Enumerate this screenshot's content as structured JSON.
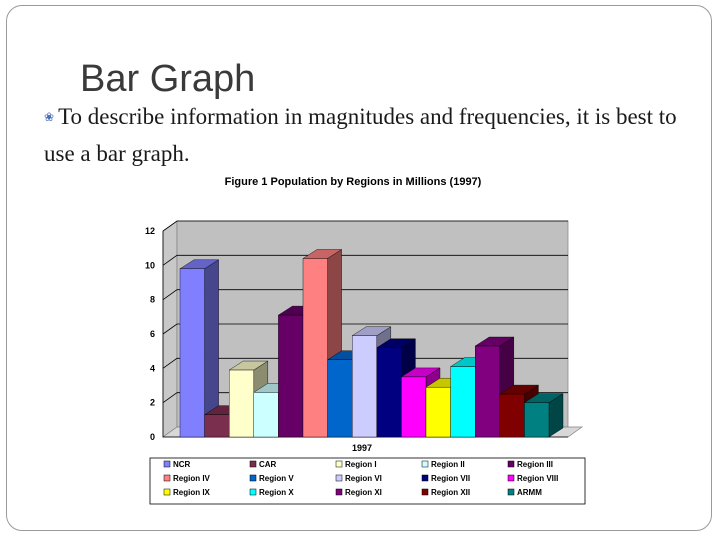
{
  "slide": {
    "title": "Bar Graph",
    "bullet": "To describe information in magnitudes and frequencies, it is best to use a bar graph."
  },
  "chart_data": {
    "type": "bar",
    "title": "Figure 1 Population by Regions  in Millions (1997)",
    "xlabel": "1997",
    "ylabel": "",
    "ylim": [
      0,
      12
    ],
    "yticks": [
      0,
      2,
      4,
      6,
      8,
      10,
      12
    ],
    "grid": true,
    "legend_position": "bottom",
    "categories": [
      "1997"
    ],
    "series": [
      {
        "name": "NCR",
        "values": [
          9.8
        ],
        "color": "#8080ff"
      },
      {
        "name": "CAR",
        "values": [
          1.3
        ],
        "color": "#7b2f4e"
      },
      {
        "name": "Region I",
        "values": [
          3.9
        ],
        "color": "#ffffcc"
      },
      {
        "name": "Region II",
        "values": [
          2.6
        ],
        "color": "#ccffff"
      },
      {
        "name": "Region III",
        "values": [
          7.1
        ],
        "color": "#660066"
      },
      {
        "name": "Region IV",
        "values": [
          10.4
        ],
        "color": "#ff8080"
      },
      {
        "name": "Region V",
        "values": [
          4.5
        ],
        "color": "#0066cc"
      },
      {
        "name": "Region VI",
        "values": [
          5.9
        ],
        "color": "#ccccff"
      },
      {
        "name": "Region VII",
        "values": [
          5.2
        ],
        "color": "#000080"
      },
      {
        "name": "Region VIII",
        "values": [
          3.5
        ],
        "color": "#ff00ff"
      },
      {
        "name": "Region IX",
        "values": [
          2.9
        ],
        "color": "#ffff00"
      },
      {
        "name": "Region X",
        "values": [
          4.1
        ],
        "color": "#00ffff"
      },
      {
        "name": "Region XI",
        "values": [
          5.3
        ],
        "color": "#800080"
      },
      {
        "name": "Region XII",
        "values": [
          2.5
        ],
        "color": "#800000"
      },
      {
        "name": "ARMM",
        "values": [
          2.0
        ],
        "color": "#008080"
      }
    ]
  }
}
